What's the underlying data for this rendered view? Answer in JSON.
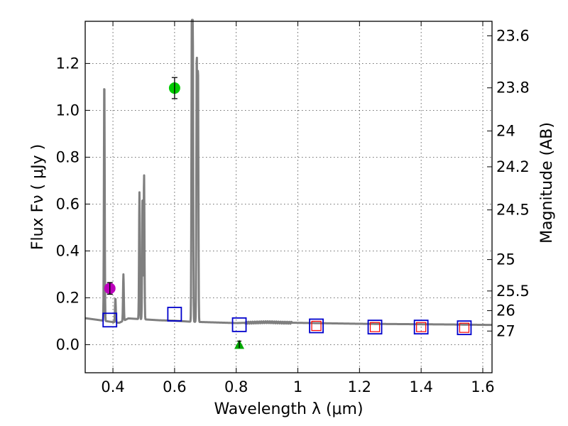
{
  "chart_data": {
    "type": "scatter",
    "xlabel": "Wavelength  λ (μm)",
    "ylabel": "Flux  Fν  ( μJy )",
    "y2label": "Magnitude (AB)",
    "xlim": [
      0.31,
      1.63
    ],
    "ylim": [
      -0.12,
      1.38
    ],
    "grid": true,
    "x_ticks": [
      0.4,
      0.6,
      0.8,
      1.0,
      1.2,
      1.4,
      1.6
    ],
    "x_tick_labels": [
      "0.4",
      "0.6",
      "0.8",
      "1",
      "1.2",
      "1.4",
      "1.6"
    ],
    "y_ticks": [
      0.0,
      0.2,
      0.4,
      0.6,
      0.8,
      1.0,
      1.2
    ],
    "y_tick_labels": [
      "0.0",
      "0.2",
      "0.4",
      "0.6",
      "0.8",
      "1.0",
      "1.2"
    ],
    "y2_ticks": [
      {
        "label": "23.6",
        "flux": 1.318
      },
      {
        "label": "23.8",
        "flux": 1.096
      },
      {
        "label": "24",
        "flux": 0.912
      },
      {
        "label": "24.2",
        "flux": 0.759
      },
      {
        "label": "24.5",
        "flux": 0.575
      },
      {
        "label": "25",
        "flux": 0.363
      },
      {
        "label": "25.5",
        "flux": 0.229
      },
      {
        "label": "26",
        "flux": 0.145
      },
      {
        "label": "27",
        "flux": 0.058
      }
    ],
    "sed_model": {
      "name": "model spectrum",
      "color": "#7f7f7f",
      "continuum": [
        [
          0.31,
          0.113
        ],
        [
          0.36,
          0.104
        ],
        [
          0.39,
          0.098
        ],
        [
          0.42,
          0.093
        ],
        [
          0.45,
          0.112
        ],
        [
          0.5,
          0.108
        ],
        [
          0.55,
          0.104
        ],
        [
          0.6,
          0.102
        ],
        [
          0.65,
          0.098
        ],
        [
          0.7,
          0.096
        ],
        [
          0.75,
          0.094
        ],
        [
          0.8,
          0.092
        ],
        [
          0.85,
          0.094
        ],
        [
          0.9,
          0.096
        ],
        [
          0.95,
          0.094
        ],
        [
          1.0,
          0.093
        ],
        [
          1.05,
          0.092
        ],
        [
          1.1,
          0.091
        ],
        [
          1.2,
          0.089
        ],
        [
          1.3,
          0.088
        ],
        [
          1.4,
          0.087
        ],
        [
          1.5,
          0.086
        ],
        [
          1.63,
          0.084
        ]
      ],
      "emission_lines": [
        {
          "x": 0.372,
          "peak": 1.14
        },
        {
          "x": 0.408,
          "peak": 0.2
        },
        {
          "x": 0.434,
          "peak": 0.3
        },
        {
          "x": 0.486,
          "peak": 0.65
        },
        {
          "x": 0.496,
          "peak": 0.64
        },
        {
          "x": 0.501,
          "peak": 0.73
        },
        {
          "x": 0.656,
          "peak": 1.4
        },
        {
          "x": 0.659,
          "peak": 1.38
        },
        {
          "x": 0.672,
          "peak": 1.26
        },
        {
          "x": 0.676,
          "peak": 1.2
        }
      ]
    },
    "model_photometry": {
      "name": "model fluxes",
      "marker": "square",
      "color": "#0000cc",
      "points": [
        {
          "x": 0.39,
          "y": 0.105
        },
        {
          "x": 0.6,
          "y": 0.13
        },
        {
          "x": 0.81,
          "y": 0.085
        },
        {
          "x": 1.06,
          "y": 0.08
        },
        {
          "x": 1.25,
          "y": 0.075
        },
        {
          "x": 1.4,
          "y": 0.075
        },
        {
          "x": 1.54,
          "y": 0.072
        }
      ]
    },
    "observed_nir": {
      "name": "observed NIR",
      "marker": "square",
      "color": "#ff0000",
      "points": [
        {
          "x": 1.06,
          "y": 0.08
        },
        {
          "x": 1.25,
          "y": 0.075
        },
        {
          "x": 1.4,
          "y": 0.075
        },
        {
          "x": 1.54,
          "y": 0.072
        }
      ]
    },
    "detections": [
      {
        "name": "violet-detection",
        "x": 0.39,
        "y": 0.24,
        "err": 0.025,
        "color": "#bb00bb"
      },
      {
        "name": "green-detection",
        "x": 0.6,
        "y": 1.095,
        "err": 0.045,
        "color": "#00cc00"
      }
    ],
    "upper_limits": [
      {
        "name": "green-limit",
        "x": 0.81,
        "y": 0.0,
        "err": 0.015,
        "color": "#00aa00"
      }
    ]
  }
}
